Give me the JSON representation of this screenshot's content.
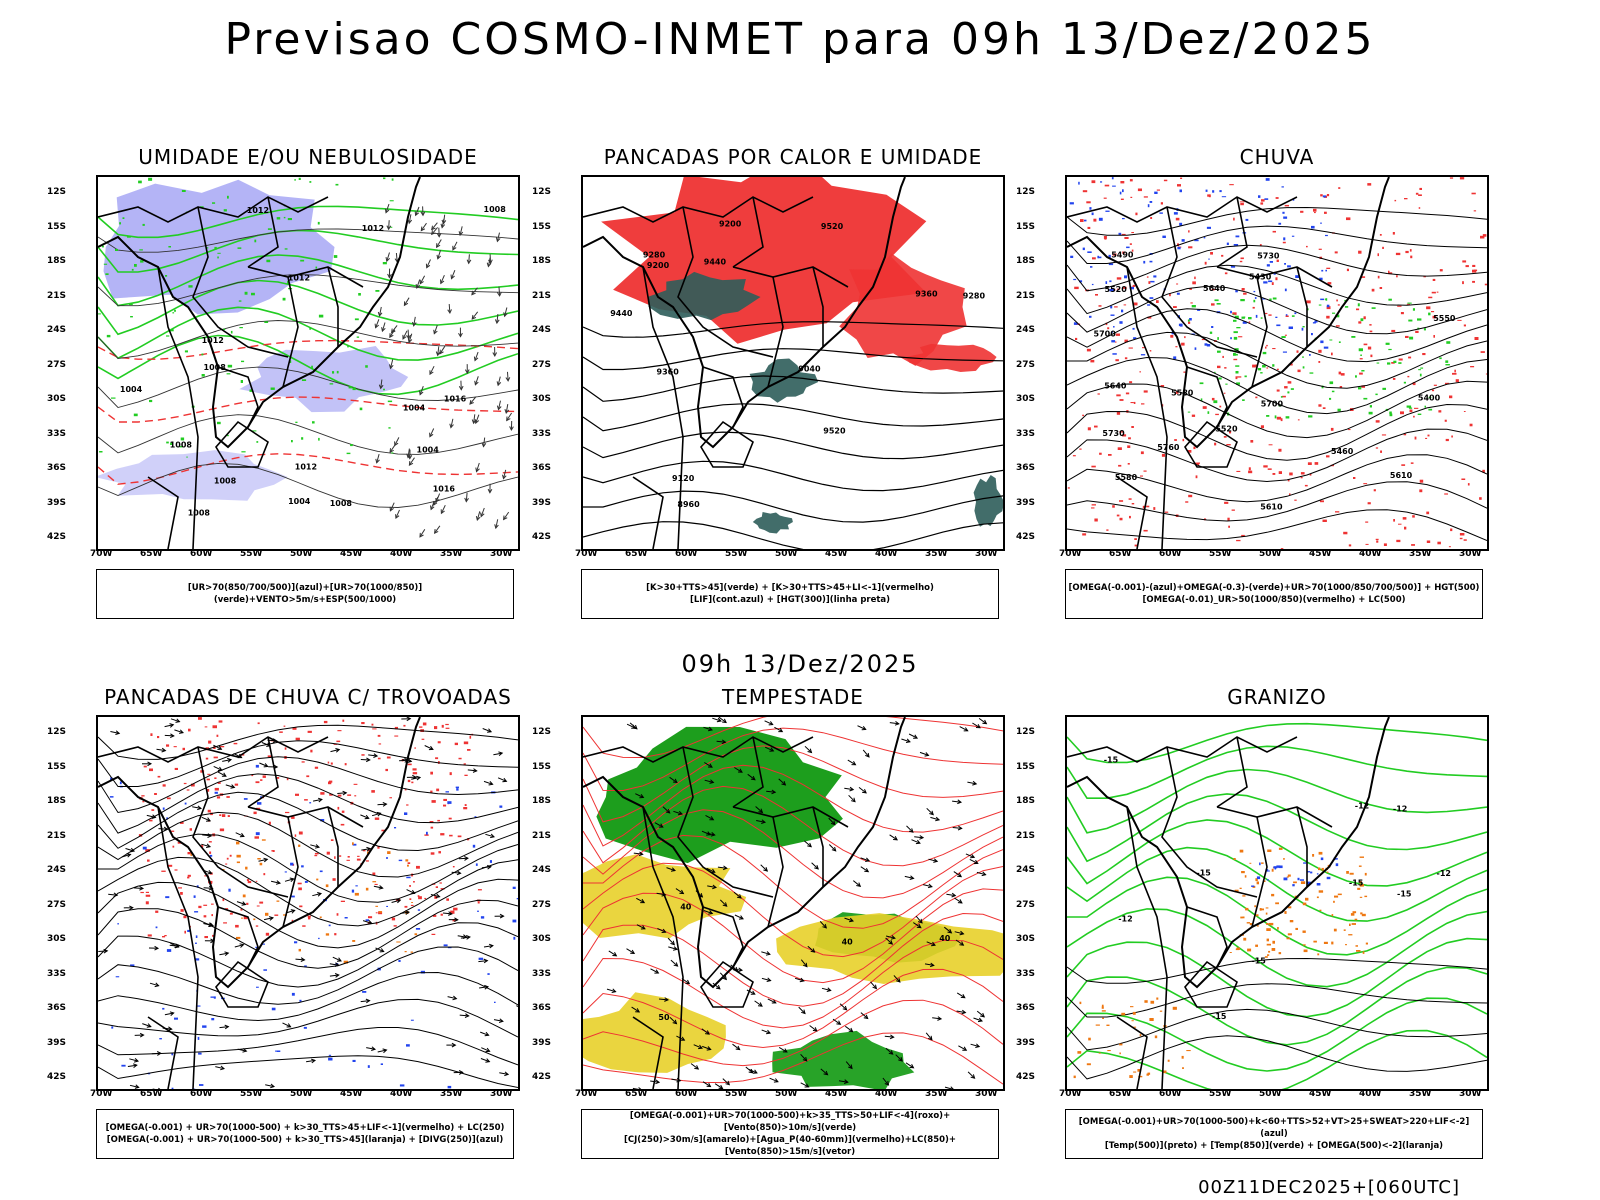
{
  "title": "Previsao COSMO-INMET  para 09h 13/Dez/2025",
  "mid_title": "09h 13/Dez/2025",
  "footer": "00Z11DEC2025+[060UTC]",
  "lat_ticks": [
    "12S",
    "15S",
    "18S",
    "21S",
    "24S",
    "27S",
    "30S",
    "33S",
    "36S",
    "39S",
    "42S"
  ],
  "lon_ticks": [
    "70W",
    "65W",
    "60W",
    "55W",
    "50W",
    "45W",
    "40W",
    "35W",
    "30W"
  ],
  "colors": {
    "blue": "#7777ee",
    "green": "#22cc22",
    "red": "#ee3333",
    "darkcyan": "#2e5d5a",
    "yellow": "#e8d02a",
    "darkgreen": "#119911",
    "orange": "#ee7711"
  },
  "panels": [
    {
      "title": "UMIDADE E/OU NEBULOSIDADE",
      "legend_lines": [
        "[UR>70(850/700/500)](azul)+[UR>70(1000/850)](verde)+VENTO>5m/s+ESP(500/1000)"
      ],
      "labels": [
        "1012",
        "1012",
        "1016",
        "1008",
        "1012",
        "1008",
        "1012",
        "1008",
        "1016",
        "1004",
        "1008",
        "1008",
        "1004",
        "1012",
        "1004",
        "1004",
        "1008"
      ]
    },
    {
      "title": "PANCADAS POR CALOR E UMIDADE",
      "legend_lines": [
        "[K>30+TTS>45](verde) + [K>30+TTS>45+LI<-1](vermelho)",
        "[LIF](cont.azul) + [HGT(300)](linha preta)"
      ],
      "labels": [
        "9520",
        "9520",
        "9440",
        "9360",
        "9440",
        "9360",
        "9280",
        "9280",
        "9200",
        "9200",
        "9120",
        "9040",
        "8960"
      ]
    },
    {
      "title": "CHUVA",
      "legend_lines": [
        "[OMEGA(-0.001)-(azul)+OMEGA(-0.3)-(verde)+UR>70(1000/850/700/500)] + HGT(500)",
        "[OMEGA(-0.01)_UR>50(1000/850)(vermelho) + LC(500)"
      ],
      "labels": [
        "5730",
        "5700",
        "5760",
        "5730",
        "5700",
        "5640",
        "5640",
        "5610",
        "5580",
        "5550",
        "5520",
        "5490",
        "5460",
        "5430",
        "5400",
        "5610",
        "5580",
        "5520"
      ]
    },
    {
      "title": "PANCADAS DE CHUVA C/ TROVOADAS",
      "legend_lines": [
        "[OMEGA(-0.001) + UR>70(1000-500) + k>30_TTS>45+LIF<-1](vermelho) + LC(250)",
        "[OMEGA(-0.001) + UR>70(1000-500) + k>30_TTS>45](laranja) + [DIVG(250)](azul)"
      ],
      "labels": []
    },
    {
      "title": "TEMPESTADE",
      "legend_lines": [
        "[OMEGA(-0.001)+UR>70(1000-500)+k>35_TTS>50+LIF<-4](roxo)+[Vento(850)>10m/s](verde)",
        "[CJ(250)>30m/s](amarelo)+[Agua_P(40-60mm)](vermelho)+LC(850)+[Vento(850)>15m/s](vetor)"
      ],
      "labels": [
        "40",
        "40",
        "40",
        "50"
      ]
    },
    {
      "title": "GRANIZO",
      "legend_lines": [
        "[OMEGA(-0.001)+UR>70(1000-500)+k<60+TTS>52+VT>25+SWEAT>220+LIF<-2](azul)",
        "[Temp(500)](preto) + [Temp(850)](verde) + [OMEGA(500)<-2](laranja)"
      ],
      "labels": [
        "-15",
        "-12",
        "-12",
        "-15",
        "-12",
        "-12",
        "-15",
        "-15",
        "-15",
        "-15"
      ]
    }
  ]
}
